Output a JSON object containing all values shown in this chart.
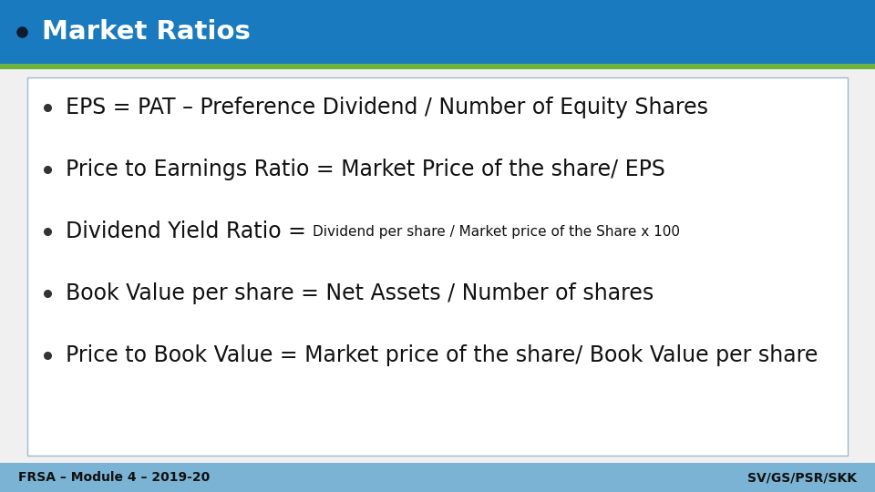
{
  "title": "Market Ratios",
  "title_bg_color": "#1a7abf",
  "title_text_color": "#ffffff",
  "green_bar_color": "#6db33f",
  "footer_bg_color": "#7ab3d4",
  "footer_left": "FRSA – Module 4 – 2019-20",
  "footer_right": "SV/GS/PSR/SKK",
  "footer_text_color": "#111111",
  "content_box_border": "#a0b8cc",
  "content_bg": "#ffffff",
  "slide_bg": "#f0f0f0",
  "bullet_points": [
    {
      "main": "EPS = PAT – Preference Dividend / Number of Equity Shares",
      "main_size": 17,
      "sub": null,
      "sub_size": null
    },
    {
      "main": "Price to Earnings Ratio = Market Price of the share/ EPS",
      "main_size": 17,
      "sub": null,
      "sub_size": null
    },
    {
      "main": "Dividend Yield Ratio = ",
      "main_size": 17,
      "sub": "Dividend per share / Market price of the Share x 100",
      "sub_size": 11
    },
    {
      "main": "Book Value per share = Net Assets / Number of shares",
      "main_size": 17,
      "sub": null,
      "sub_size": null
    },
    {
      "main": "Price to Book Value = Market price of the share/ Book Value per share",
      "main_size": 17,
      "sub": null,
      "sub_size": null
    }
  ]
}
